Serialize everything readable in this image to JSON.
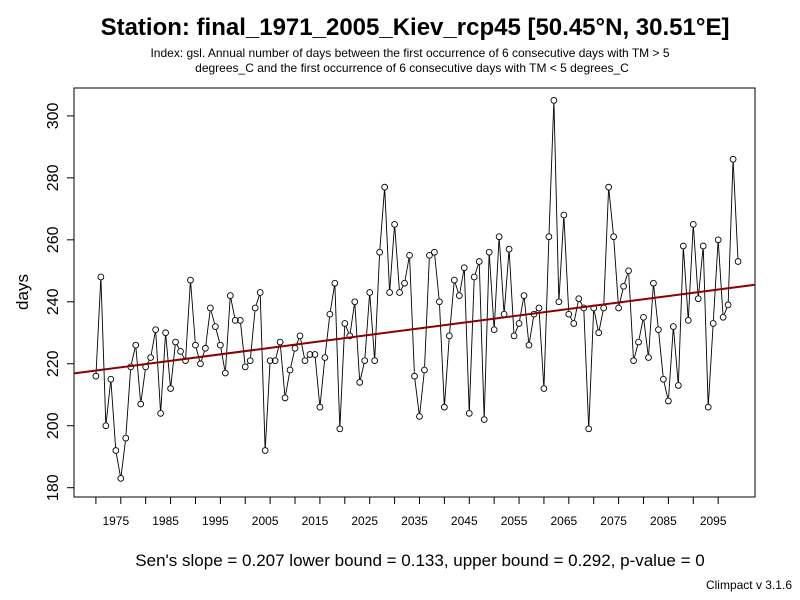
{
  "title": "Station: final_1971_2005_Kiev_rcp45 [50.45°N, 30.51°E]",
  "subtitle_line1": "Index: gsl. Annual number of days between the first occurrence of 6 consecutive days with TM > 5",
  "subtitle_line2": "degrees_C and the first occurrence of 6 consecutive days with TM < 5 degrees_C",
  "footer": {
    "stats": "Sen's slope = 0.207   lower bound = 0.133,   upper bound = 0.292,   p-value = 0",
    "version": "Climpact v 3.1.6"
  },
  "colors": {
    "series": "#000000",
    "trend": "#8b0000"
  },
  "chart_data": {
    "type": "line",
    "ylabel": "days",
    "xlabel": "",
    "xlim": [
      1966.6,
      2103.4
    ],
    "ylim": [
      177,
      309
    ],
    "x_ticks": [
      1975,
      1985,
      1995,
      2005,
      2015,
      2025,
      2035,
      2045,
      2055,
      2065,
      2075,
      2085,
      2095
    ],
    "y_ticks": [
      180,
      200,
      220,
      240,
      260,
      280,
      300
    ],
    "grid": false,
    "series": [
      {
        "x": [
          1971,
          1972,
          1973,
          1974,
          1975,
          1976,
          1977,
          1978,
          1979,
          1980,
          1981,
          1982,
          1983,
          1984,
          1985,
          1986,
          1987,
          1988,
          1989,
          1990,
          1991,
          1992,
          1993,
          1994,
          1995,
          1996,
          1997,
          1998,
          1999,
          2000,
          2001,
          2002,
          2003,
          2004,
          2005,
          2006,
          2007,
          2008,
          2009,
          2010,
          2011,
          2012,
          2013,
          2014,
          2015,
          2016,
          2017,
          2018,
          2019,
          2020,
          2021,
          2022,
          2023,
          2024,
          2025,
          2026,
          2027,
          2028,
          2029,
          2030,
          2031,
          2032,
          2033,
          2034,
          2035,
          2036,
          2037,
          2038,
          2039,
          2040,
          2041,
          2042,
          2043,
          2044,
          2045,
          2046,
          2047,
          2048,
          2049,
          2050,
          2051,
          2052,
          2053,
          2054,
          2055,
          2056,
          2057,
          2058,
          2059,
          2060,
          2061,
          2062,
          2063,
          2064,
          2065,
          2066,
          2067,
          2068,
          2069,
          2070,
          2071,
          2072,
          2073,
          2074,
          2075,
          2076,
          2077,
          2078,
          2079,
          2080,
          2081,
          2082,
          2083,
          2084,
          2085,
          2086,
          2087,
          2088,
          2089,
          2090,
          2091,
          2092,
          2093,
          2094,
          2095,
          2096,
          2097,
          2098,
          2099,
          2100
        ],
        "values": [
          216,
          248,
          200,
          215,
          192,
          183,
          196,
          219,
          226,
          207,
          219,
          222,
          231,
          204,
          230,
          212,
          227,
          224,
          221,
          247,
          226,
          220,
          225,
          238,
          232,
          226,
          217,
          242,
          234,
          234,
          219,
          221,
          238,
          243,
          192,
          221,
          221,
          227,
          209,
          218,
          225,
          229,
          221,
          223,
          223,
          206,
          222,
          236,
          246,
          199,
          233,
          229,
          240,
          214,
          221,
          243,
          221,
          256,
          277,
          243,
          265,
          243,
          246,
          255,
          216,
          203,
          218,
          255,
          256,
          240,
          206,
          229,
          247,
          242,
          251,
          204,
          248,
          253,
          202,
          256,
          231,
          261,
          236,
          257,
          229,
          233,
          242,
          226,
          236,
          238,
          212,
          261,
          305,
          240,
          268,
          236,
          233,
          241,
          238,
          199,
          238,
          230,
          238,
          277,
          261,
          238,
          245,
          250,
          221,
          227,
          235,
          222,
          246,
          231,
          215,
          208,
          232,
          213,
          258,
          234,
          265,
          241,
          258,
          206,
          233,
          260,
          235,
          239,
          286,
          253
        ]
      }
    ],
    "trend": {
      "x": [
        1966.6,
        2103.4
      ],
      "y": [
        216.9,
        245.5
      ]
    }
  }
}
